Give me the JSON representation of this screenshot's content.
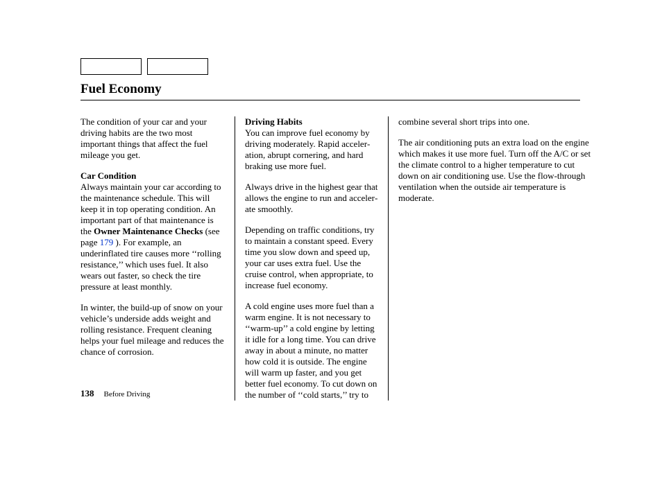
{
  "heading": "Fuel Economy",
  "col1": {
    "intro": "The condition of your car and your driving habits are the two most important things that affect the fuel mileage you get.",
    "subhead": "Car Condition",
    "p2a": "Always maintain your car according to the maintenance schedule. This will keep it in top operating condition. An important part of that mainte­nance is the ",
    "p2b": "Owner Maintenance Checks",
    "p2c": " (see page ",
    "p2link": "179",
    "p2d": " ). For example, an underinflated tire causes more ‘‘rolling resistance,’’ which uses fuel. It also wears out faster, so check the tire pressure at least monthly.",
    "p3": "In winter, the build-up of snow on your vehicle’s underside adds weight and rolling resistance. Frequent cleaning helps your fuel mileage and reduces the chance of corrosion."
  },
  "col2": {
    "subhead": "Driving Habits",
    "p1": "You can improve fuel economy by driving moderately. Rapid acceler­ation, abrupt cornering, and hard braking use more fuel.",
    "p2": "Always drive in the highest gear that allows the engine to run and acceler­ate smoothly.",
    "p3": "Depending on traffic conditions, try to maintain a constant speed. Every time you slow down and speed up, your car uses extra fuel. Use the cruise control, when appropriate, to increase fuel economy.",
    "p4": "A cold engine uses more fuel than a warm engine. It is not necessary to ‘‘warm-up’’ a cold engine by letting it idle for a long time. You can drive away in about a minute, no matter how cold it is outside. The engine will warm up faster, and you get better fuel economy. To cut down on the number of ‘‘cold starts,’’ try to"
  },
  "col3": {
    "p1": "combine several short trips into one.",
    "p2": "The air conditioning puts an extra load on the engine which makes it use more fuel. Turn off the A/C or set the climate control to a higher temperature to cut down on air conditioning use. Use the flow-through ventilation when the outside air temperature is moderate."
  },
  "footer": {
    "page": "138",
    "section": "Before Driving"
  },
  "colors": {
    "link": "#0033cc",
    "text": "#000000",
    "background": "#ffffff"
  }
}
